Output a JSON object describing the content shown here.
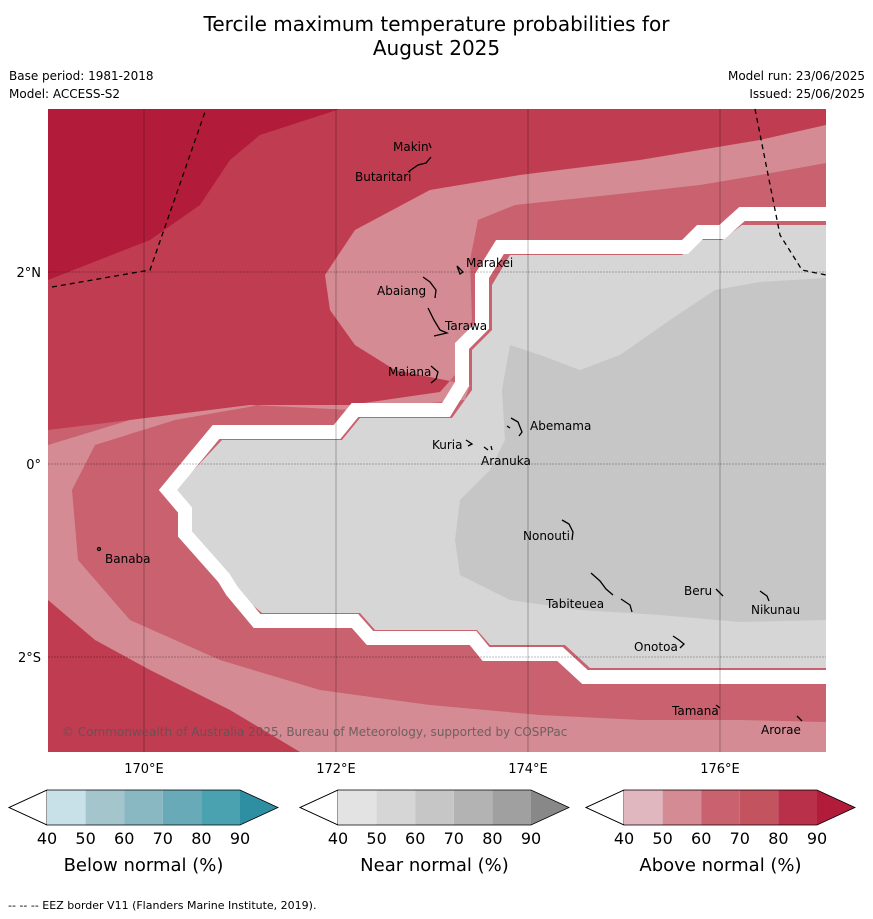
{
  "title_line1": "Tercile maximum temperature probabilities for",
  "title_line2": "August 2025",
  "meta": {
    "base_period": "Base period: 1981-2018",
    "model": "Model: ACCESS-S2",
    "model_run": "Model run: 23/06/2025",
    "issued": "Issued: 25/06/2025"
  },
  "map": {
    "lat_labels": [
      "2°N",
      "0°",
      "2°S"
    ],
    "lon_labels": [
      "170°E",
      "172°E",
      "174°E",
      "176°E"
    ],
    "copyright": "© Commonwealth of Australia 2025, Bureau of Meteorology, supported by COSPPac",
    "places": [
      "Makin",
      "Butaritari",
      "Marakei",
      "Abaiang",
      "Tarawa",
      "Maiana",
      "Abemama",
      "Kuria",
      "Aranuka",
      "Banaba",
      "Nonouti",
      "Beru",
      "Tabiteuea",
      "Nikunau",
      "Onotoa",
      "Tamana",
      "Arorae"
    ],
    "colors": {
      "above_90": "#b21c3a",
      "above_80": "#c03c51",
      "above_70": "#c9616f",
      "above_60": "#d48b93",
      "near_50": "#d6d6d6",
      "near_60": "#c6c6c6"
    }
  },
  "colorbars": [
    {
      "label": "Below normal (%)",
      "ticks": [
        "40",
        "50",
        "60",
        "70",
        "80",
        "90"
      ],
      "colors": [
        "#c8e1e8",
        "#a4c5cc",
        "#89b7c2",
        "#69aab8",
        "#4aa1b0",
        "#2e8fa3"
      ]
    },
    {
      "label": "Near normal (%)",
      "ticks": [
        "40",
        "50",
        "60",
        "70",
        "80",
        "90"
      ],
      "colors": [
        "#e3e3e3",
        "#d6d6d6",
        "#c6c6c6",
        "#b3b3b3",
        "#a0a0a0",
        "#888888"
      ]
    },
    {
      "label": "Above normal (%)",
      "ticks": [
        "40",
        "50",
        "60",
        "70",
        "80",
        "90"
      ],
      "colors": [
        "#e0b7be",
        "#d48b93",
        "#c9616f",
        "#c2535f",
        "#b8304a",
        "#b21c3a"
      ]
    }
  ],
  "footer": "--  --  -- EEZ border V11 (Flanders Marine Institute, 2019)."
}
